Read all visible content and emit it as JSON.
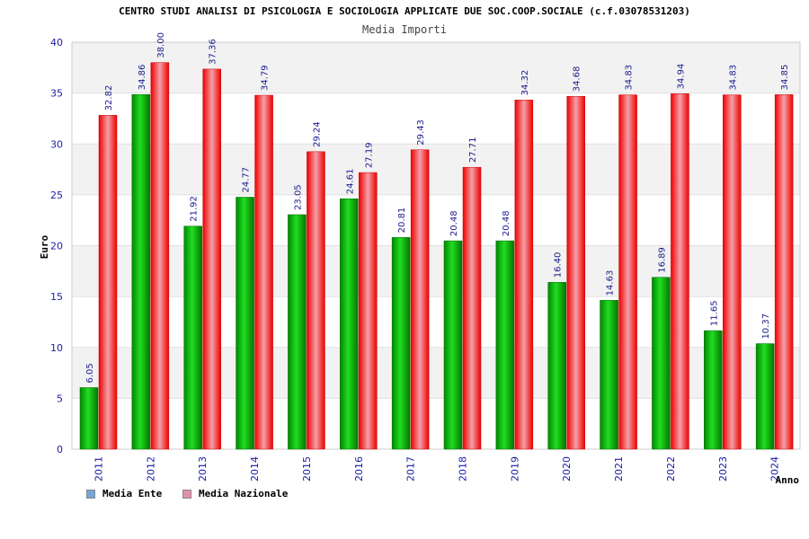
{
  "chart_data": {
    "type": "bar",
    "title": "CENTRO STUDI ANALISI DI PSICOLOGIA E SOCIOLOGIA APPLICATE DUE SOC.COOP.SOCIALE (c.f.03078531203)",
    "subtitle": "Media Importi",
    "xlabel": "Anno",
    "ylabel": "Euro",
    "ylim": [
      0,
      40
    ],
    "yticks": [
      0,
      5,
      10,
      15,
      20,
      25,
      30,
      35,
      40
    ],
    "grid": true,
    "legend_position": "bottom-left",
    "categories": [
      "2011",
      "2012",
      "2013",
      "2014",
      "2015",
      "2016",
      "2017",
      "2018",
      "2019",
      "2020",
      "2021",
      "2022",
      "2023",
      "2024"
    ],
    "series": [
      {
        "name": "Media Ente",
        "color": "#00aa00",
        "legend_color": "#6fa8dc",
        "values": [
          6.05,
          34.86,
          21.92,
          24.77,
          23.05,
          24.61,
          20.81,
          20.48,
          20.48,
          16.4,
          14.63,
          16.89,
          11.65,
          10.37
        ],
        "labels": [
          "6.05",
          "34.86",
          "21.92",
          "24.77",
          "23.05",
          "24.61",
          "20.81",
          "20.48",
          "20.48",
          "16.40",
          "14.63",
          "16.89",
          "11.65",
          "10.37"
        ]
      },
      {
        "name": "Media Nazionale",
        "color": "#ee1111",
        "legend_color": "#e38fb0",
        "values": [
          32.82,
          38.0,
          37.36,
          34.79,
          29.24,
          27.19,
          29.43,
          27.71,
          34.32,
          34.68,
          34.83,
          34.94,
          34.83,
          34.85
        ],
        "labels": [
          "32.82",
          "38.00",
          "37.36",
          "34.79",
          "29.24",
          "27.19",
          "29.43",
          "27.71",
          "34.32",
          "34.68",
          "34.83",
          "34.94",
          "34.83",
          "34.85"
        ]
      }
    ]
  }
}
